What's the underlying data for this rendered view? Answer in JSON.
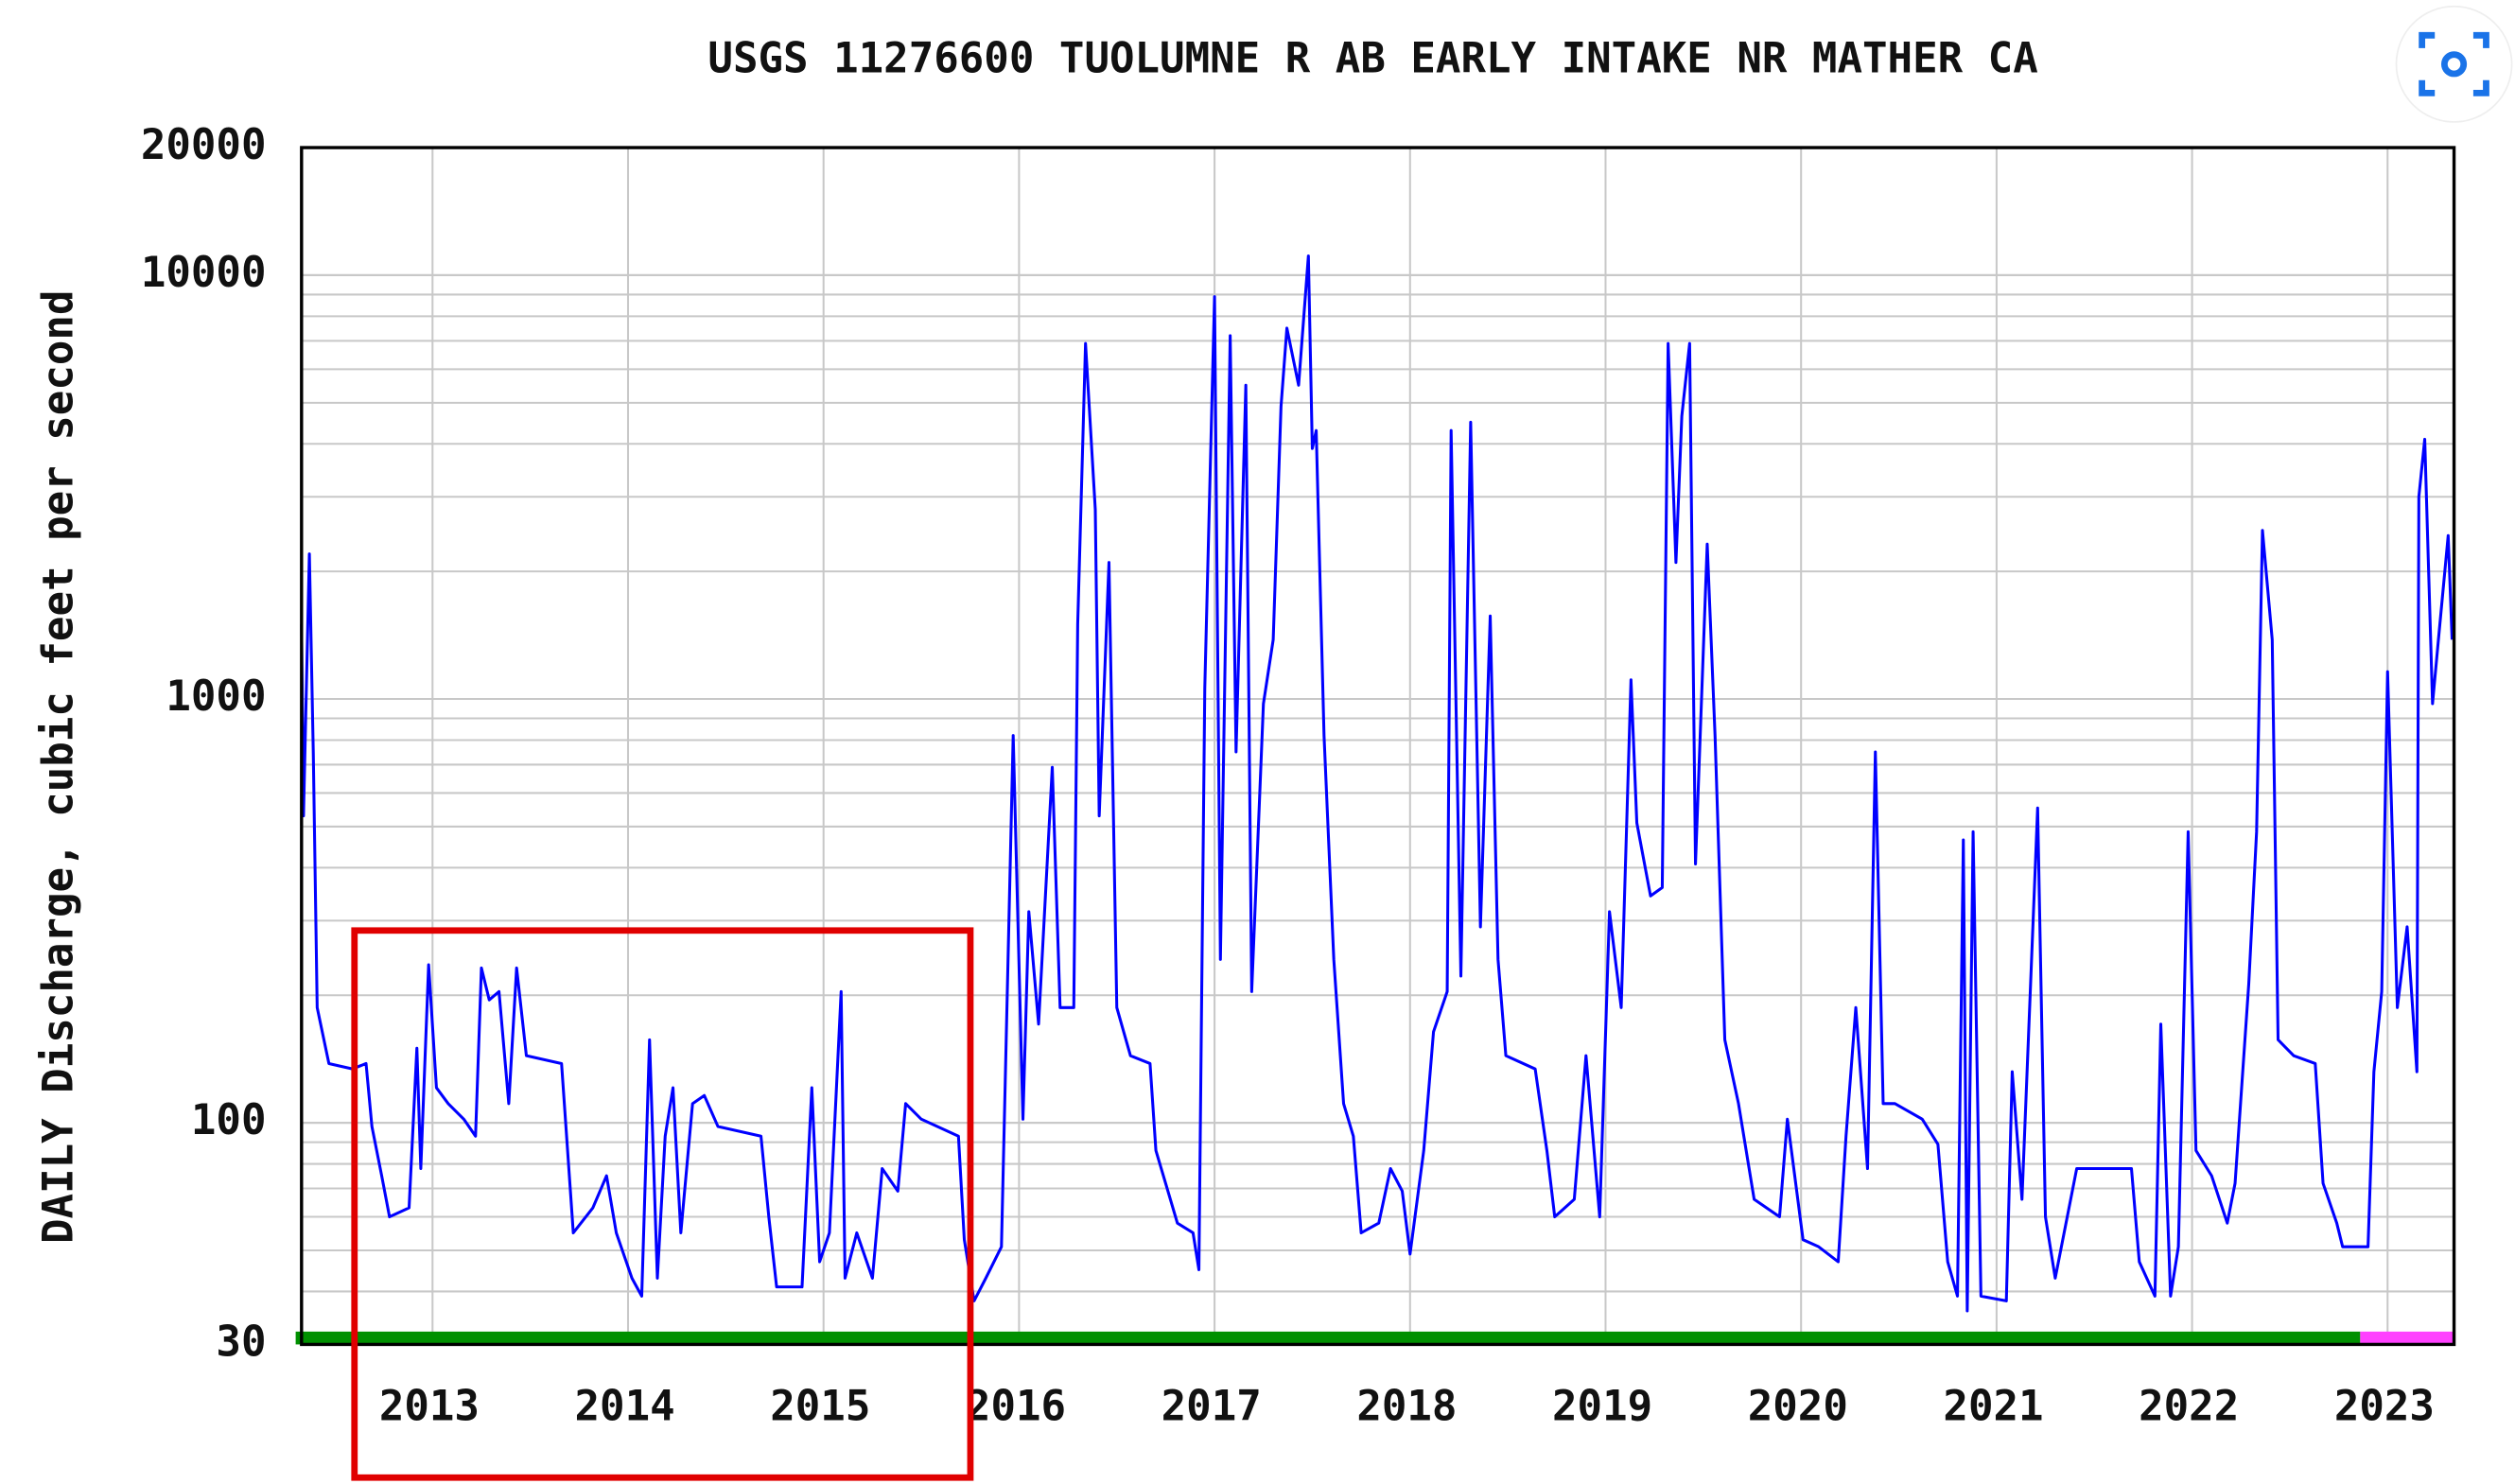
{
  "chart_data": {
    "type": "line",
    "title": "USGS 11276600 TUOLUMNE R AB EARLY INTAKE NR MATHER CA",
    "y_label": "DAILY Discharge, cubic feet per second",
    "color": "#0000ff",
    "log_y": true,
    "grid": true,
    "xlim": [
      2012.33,
      2023.34
    ],
    "xticks": [
      2013,
      2014,
      2015,
      2016,
      2017,
      2018,
      2019,
      2020,
      2021,
      2022,
      2023
    ],
    "ylim": [
      30,
      20000
    ],
    "yticks": [
      30,
      100,
      1000,
      10000,
      20000
    ],
    "status_bar": [
      {
        "color": "#009000",
        "from": 2012.3,
        "to": 2022.86
      },
      {
        "color": "#ff40ff",
        "from": 2022.86,
        "to": 2023.34
      }
    ],
    "x": [
      2012.33,
      2012.34,
      2012.37,
      2012.39,
      2012.41,
      2012.47,
      2012.59,
      2012.66,
      2012.69,
      2012.74,
      2012.78,
      2012.88,
      2012.92,
      2012.94,
      2012.98,
      2013.02,
      2013.08,
      2013.16,
      2013.22,
      2013.25,
      2013.29,
      2013.34,
      2013.39,
      2013.43,
      2013.48,
      2013.66,
      2013.72,
      2013.82,
      2013.89,
      2013.94,
      2014.02,
      2014.07,
      2014.11,
      2014.15,
      2014.19,
      2014.23,
      2014.27,
      2014.33,
      2014.39,
      2014.46,
      2014.68,
      2014.72,
      2014.76,
      2014.89,
      2014.94,
      2014.98,
      2015.03,
      2015.09,
      2015.11,
      2015.17,
      2015.25,
      2015.3,
      2015.38,
      2015.42,
      2015.5,
      2015.69,
      2015.72,
      2015.77,
      2015.83,
      2015.91,
      2015.97,
      2016.02,
      2016.05,
      2016.1,
      2016.17,
      2016.21,
      2016.28,
      2016.3,
      2016.34,
      2016.39,
      2016.41,
      2016.46,
      2016.5,
      2016.57,
      2016.67,
      2016.7,
      2016.81,
      2016.89,
      2016.92,
      2016.95,
      2017.0,
      2017.03,
      2017.08,
      2017.11,
      2017.16,
      2017.19,
      2017.25,
      2017.3,
      2017.34,
      2017.37,
      2017.43,
      2017.48,
      2017.5,
      2017.52,
      2017.56,
      2017.61,
      2017.66,
      2017.71,
      2017.75,
      2017.84,
      2017.9,
      2017.96,
      2018.0,
      2018.07,
      2018.12,
      2018.19,
      2018.21,
      2018.26,
      2018.31,
      2018.36,
      2018.41,
      2018.45,
      2018.49,
      2018.64,
      2018.7,
      2018.74,
      2018.84,
      2018.9,
      2018.97,
      2019.02,
      2019.08,
      2019.13,
      2019.16,
      2019.23,
      2019.29,
      2019.32,
      2019.36,
      2019.39,
      2019.43,
      2019.46,
      2019.52,
      2019.56,
      2019.61,
      2019.68,
      2019.76,
      2019.89,
      2019.93,
      2020.01,
      2020.09,
      2020.19,
      2020.23,
      2020.28,
      2020.34,
      2020.38,
      2020.42,
      2020.48,
      2020.62,
      2020.7,
      2020.75,
      2020.8,
      2020.83,
      2020.85,
      2020.88,
      2020.92,
      2021.05,
      2021.08,
      2021.13,
      2021.21,
      2021.25,
      2021.3,
      2021.41,
      2021.69,
      2021.73,
      2021.81,
      2021.84,
      2021.89,
      2021.93,
      2021.98,
      2022.02,
      2022.1,
      2022.18,
      2022.22,
      2022.29,
      2022.33,
      2022.36,
      2022.41,
      2022.44,
      2022.52,
      2022.63,
      2022.67,
      2022.74,
      2022.77,
      2022.9,
      2022.93,
      2022.97,
      2023.0,
      2023.05,
      2023.1,
      2023.15,
      2023.16,
      2023.19,
      2023.23,
      2023.26,
      2023.31,
      2023.33
    ],
    "values": [
      1500,
      530,
      2200,
      750,
      187,
      138,
      134,
      138,
      98,
      75,
      60,
      63,
      150,
      78,
      236,
      121,
      111,
      102,
      93,
      232,
      195,
      204,
      111,
      232,
      144,
      138,
      55,
      63,
      75,
      55,
      43,
      39,
      157,
      43,
      93,
      121,
      55,
      111,
      116,
      98,
      93,
      60,
      41,
      41,
      121,
      47,
      55,
      204,
      43,
      55,
      43,
      78,
      69,
      111,
      102,
      93,
      53,
      38,
      43,
      51,
      820,
      102,
      315,
      171,
      690,
      187,
      187,
      1500,
      6900,
      2800,
      530,
      2100,
      187,
      144,
      138,
      86,
      58,
      55,
      45,
      1060,
      8900,
      243,
      7200,
      750,
      5500,
      204,
      975,
      1380,
      4900,
      7500,
      5500,
      11100,
      3900,
      4300,
      820,
      243,
      111,
      93,
      55,
      58,
      78,
      69,
      49,
      86,
      164,
      204,
      4300,
      222,
      4500,
      290,
      1570,
      243,
      144,
      134,
      86,
      60,
      66,
      144,
      60,
      315,
      187,
      1110,
      510,
      343,
      359,
      6900,
      2100,
      4650,
      6900,
      408,
      2320,
      820,
      157,
      111,
      66,
      60,
      102,
      53,
      51,
      47,
      93,
      187,
      78,
      750,
      111,
      111,
      102,
      89,
      47,
      39,
      465,
      36,
      486,
      39,
      38,
      132,
      66,
      553,
      60,
      43,
      78,
      78,
      47,
      39,
      171,
      39,
      51,
      486,
      86,
      75,
      58,
      72,
      213,
      486,
      2500,
      1380,
      157,
      144,
      138,
      72,
      58,
      51,
      51,
      132,
      204,
      1160,
      187,
      290,
      132,
      3000,
      4100,
      975,
      1380,
      2430,
      1380
    ]
  }
}
